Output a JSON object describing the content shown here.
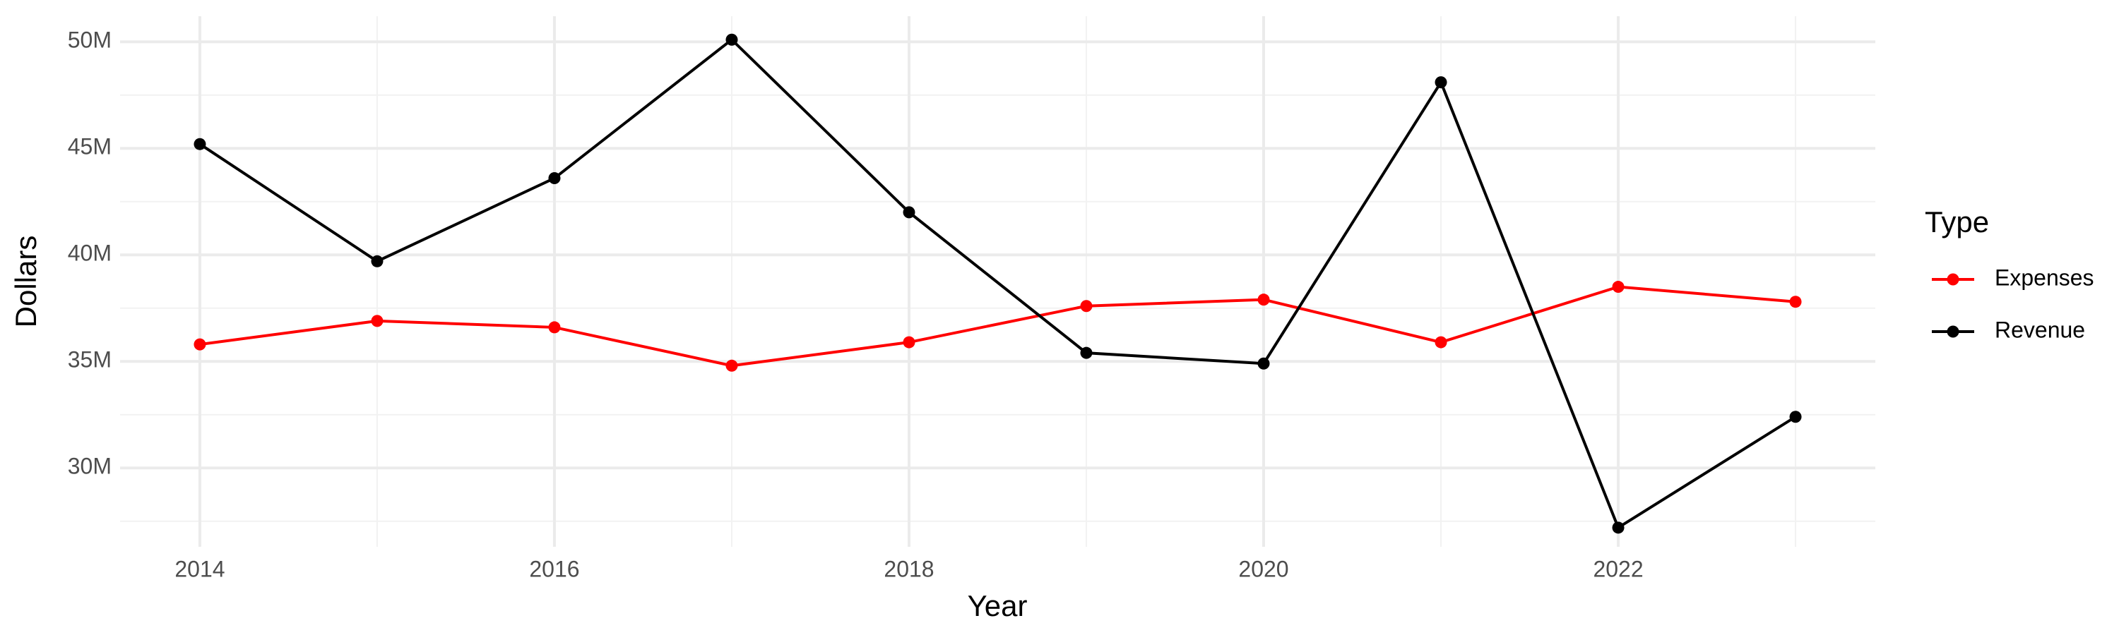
{
  "chart_data": {
    "type": "line",
    "x_label": "Year",
    "y_label": "Dollars",
    "legend_title": "Type",
    "x": [
      2014,
      2015,
      2016,
      2017,
      2018,
      2019,
      2020,
      2021,
      2022,
      2023
    ],
    "series": [
      {
        "name": "Expenses",
        "color": "#ff0000",
        "values": [
          35800000,
          36900000,
          36600000,
          34800000,
          35900000,
          37600000,
          37900000,
          35900000,
          38500000,
          37800000
        ]
      },
      {
        "name": "Revenue",
        "color": "#000000",
        "values": [
          45200000,
          39700000,
          43600000,
          50100000,
          42000000,
          35400000,
          34900000,
          48100000,
          27200000,
          32400000
        ]
      }
    ],
    "xlim": [
      2013.55,
      2023.45
    ],
    "xticks": [
      2014,
      2016,
      2018,
      2020,
      2022
    ],
    "ylim": [
      26300000,
      51200000
    ],
    "yticks": [
      {
        "value": 30000000,
        "label": "30M"
      },
      {
        "value": 35000000,
        "label": "35M"
      },
      {
        "value": 40000000,
        "label": "40M"
      },
      {
        "value": 45000000,
        "label": "45M"
      },
      {
        "value": 50000000,
        "label": "50M"
      }
    ],
    "grid": true,
    "legend": "right"
  }
}
